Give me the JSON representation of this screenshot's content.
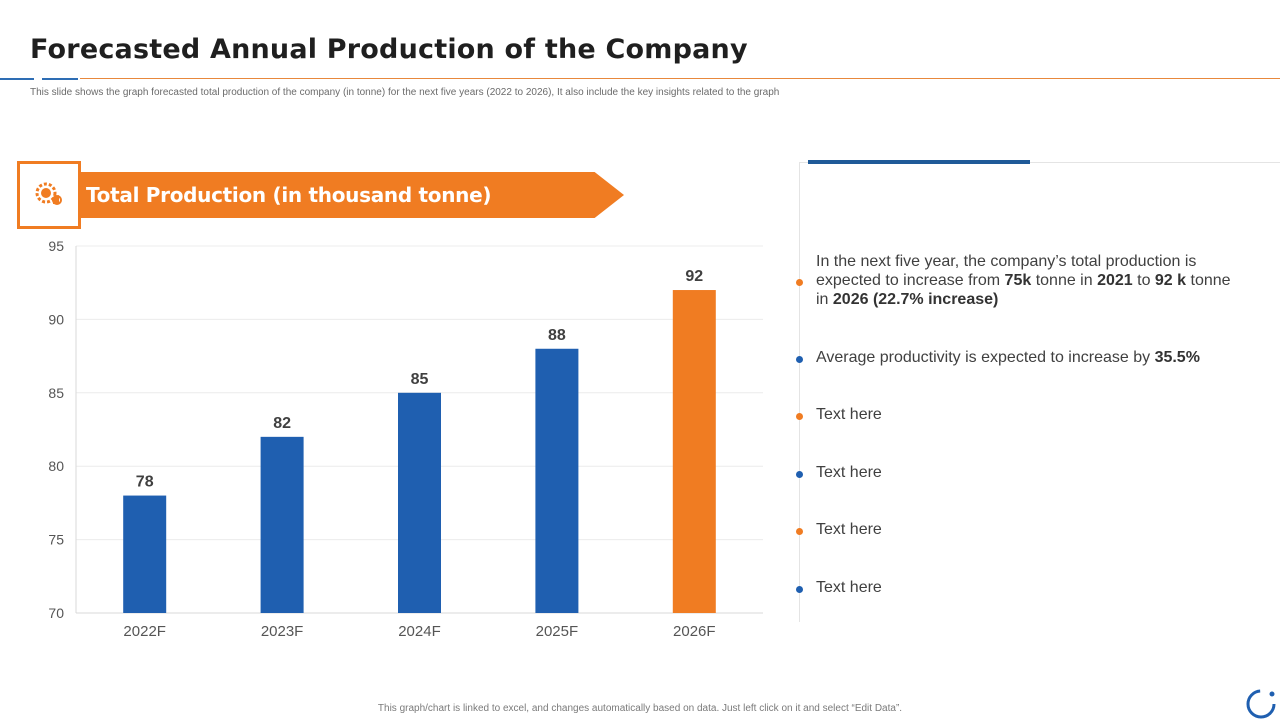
{
  "page": {
    "title": "Forecasted Annual Production of the Company",
    "subtitle": "This slide shows the graph forecasted total production of the company (in tonne) for the next five years (2022 to 2026), It also include the key insights related to the graph",
    "banner": "Total Production (in thousand tonne)",
    "banner_icon": "gear-production-icon",
    "footer": "This graph/chart is linked to excel, and changes automatically based on data. Just left click on it and select “Edit Data”."
  },
  "colors": {
    "accent": "#f07c22",
    "primary": "#1f5fb0",
    "highlight": "#f07c22"
  },
  "chart_data": {
    "type": "bar",
    "title": "Total Production (in thousand tonne)",
    "categories": [
      "2022F",
      "2023F",
      "2024F",
      "2025F",
      "2026F"
    ],
    "values": [
      78,
      82,
      85,
      88,
      92
    ],
    "ylim": [
      70,
      95
    ],
    "yticks": [
      70,
      75,
      80,
      85,
      90,
      95
    ],
    "data_labels": [
      "78",
      "82",
      "85",
      "88",
      "92"
    ],
    "bar_colors": [
      "#1f5fb0",
      "#1f5fb0",
      "#1f5fb0",
      "#1f5fb0",
      "#f07c22"
    ],
    "grid": true
  },
  "insights": [
    {
      "color": "#f07c22",
      "segments": [
        {
          "t": "In the next five year, the company’s total production is expected to increase from ",
          "b": false
        },
        {
          "t": "75k",
          "b": true
        },
        {
          "t": " tonne in ",
          "b": false
        },
        {
          "t": "2021",
          "b": true
        },
        {
          "t": " to ",
          "b": false
        },
        {
          "t": "92 k",
          "b": true
        },
        {
          "t": " tonne in ",
          "b": false
        },
        {
          "t": "2026 (22.7% increase)",
          "b": true
        }
      ]
    },
    {
      "color": "#1f5fb0",
      "segments": [
        {
          "t": "Average productivity is expected to increase by ",
          "b": false
        },
        {
          "t": "35.5%",
          "b": true
        }
      ]
    },
    {
      "color": "#f07c22",
      "segments": [
        {
          "t": "Text here",
          "b": false
        }
      ]
    },
    {
      "color": "#1f5fb0",
      "segments": [
        {
          "t": "Text here",
          "b": false
        }
      ]
    },
    {
      "color": "#f07c22",
      "segments": [
        {
          "t": "Text here",
          "b": false
        }
      ]
    },
    {
      "color": "#1f5fb0",
      "segments": [
        {
          "t": "Text here",
          "b": false
        }
      ]
    }
  ]
}
